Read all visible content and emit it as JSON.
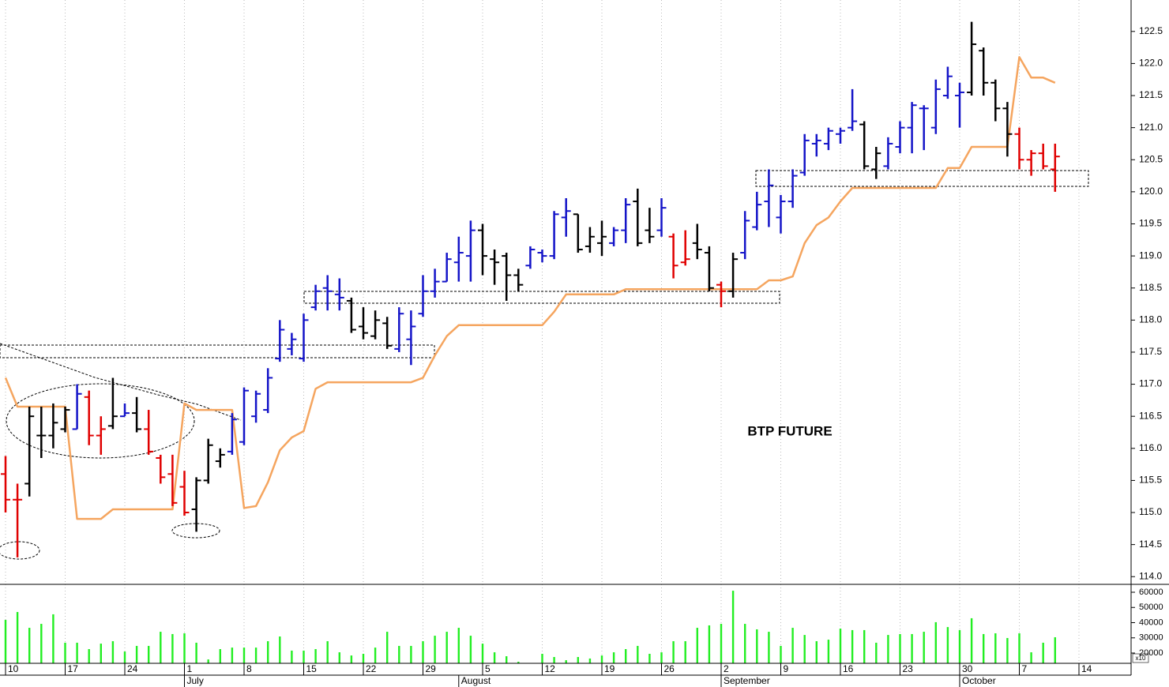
{
  "chart_data": {
    "type": "ohlc",
    "title": "BTP FUTURE",
    "categories": [
      "10",
      null,
      null,
      null,
      null,
      "17",
      null,
      null,
      null,
      null,
      "24",
      null,
      null,
      null,
      null,
      "1",
      null,
      null,
      null,
      null,
      "8",
      null,
      null,
      null,
      null,
      "15",
      null,
      null,
      null,
      null,
      "22",
      null,
      null,
      null,
      null,
      "29",
      null,
      null,
      null,
      null,
      "5",
      null,
      null,
      null,
      null,
      "12",
      null,
      null,
      null,
      null,
      "19",
      null,
      null,
      null,
      null,
      "26",
      null,
      null,
      null,
      null,
      "2",
      null,
      null,
      null,
      null,
      "9",
      null,
      null,
      null,
      null,
      "16",
      null,
      null,
      null,
      null,
      "23",
      null,
      null,
      null,
      null,
      "30",
      null,
      null,
      null,
      null,
      "7",
      null,
      null,
      null,
      null,
      "14"
    ],
    "months": [
      {
        "label": "July",
        "category": 15
      },
      {
        "label": "August",
        "category": 38
      },
      {
        "label": "September",
        "category": 60
      },
      {
        "label": "October",
        "category": 80
      }
    ],
    "open": [
      115.6,
      115.2,
      115.45,
      116.2,
      116.2,
      116.3,
      116.3,
      116.8,
      116.2,
      116.35,
      116.5,
      116.55,
      116.3,
      115.85,
      115.6,
      115.4,
      115.05,
      115.5,
      115.8,
      115.95,
      116.1,
      116.5,
      116.6,
      117.4,
      117.55,
      117.4,
      118.2,
      118.5,
      118.4,
      118.3,
      117.9,
      117.75,
      117.95,
      117.55,
      117.7,
      118.1,
      118.45,
      118.6,
      118.9,
      119.0,
      119.4,
      118.95,
      119.0,
      118.7,
      118.85,
      119.05,
      119.0,
      119.6,
      119.65,
      119.15,
      119.2,
      119.2,
      119.4,
      119.85,
      119.4,
      119.4,
      119.3,
      118.9,
      119.2,
      119.05,
      118.55,
      118.45,
      119.05,
      119.45,
      119.85,
      119.6,
      119.85,
      120.3,
      120.75,
      120.75,
      120.9,
      121.0,
      121.05,
      120.35,
      120.4,
      120.7,
      121.0,
      121.3,
      121.0,
      121.5,
      121.5,
      121.55,
      122.2,
      121.7,
      121.3,
      120.9,
      120.5,
      120.6,
      120.35,
      null,
      null
    ],
    "high": [
      115.88,
      115.45,
      116.65,
      116.65,
      116.7,
      116.65,
      117.0,
      116.9,
      116.5,
      117.1,
      116.7,
      116.8,
      116.6,
      115.9,
      115.9,
      115.65,
      115.55,
      116.15,
      116.0,
      116.55,
      116.95,
      116.9,
      117.25,
      118.0,
      117.8,
      118.1,
      118.55,
      118.7,
      118.65,
      118.35,
      118.2,
      118.15,
      118.05,
      118.2,
      118.15,
      118.7,
      118.8,
      119.05,
      119.3,
      119.55,
      119.5,
      119.1,
      119.05,
      118.8,
      119.15,
      119.1,
      119.7,
      119.9,
      119.65,
      119.45,
      119.55,
      119.45,
      119.9,
      120.05,
      119.75,
      119.9,
      119.35,
      119.4,
      119.5,
      119.15,
      118.6,
      119.05,
      119.7,
      120.0,
      120.35,
      119.95,
      120.35,
      120.9,
      120.9,
      121.0,
      121.0,
      121.6,
      121.1,
      120.7,
      120.85,
      121.1,
      121.4,
      121.35,
      121.75,
      121.95,
      121.7,
      122.65,
      122.25,
      121.75,
      121.4,
      121.0,
      120.65,
      120.75,
      120.75,
      null,
      null
    ],
    "low": [
      115.0,
      114.3,
      115.25,
      115.85,
      116.0,
      116.25,
      116.3,
      116.05,
      115.9,
      116.3,
      116.5,
      116.25,
      115.9,
      115.45,
      115.1,
      114.95,
      114.7,
      115.45,
      115.7,
      115.9,
      116.05,
      116.4,
      116.55,
      117.35,
      117.45,
      117.35,
      118.15,
      118.15,
      118.15,
      117.8,
      117.7,
      117.7,
      117.55,
      117.5,
      117.3,
      118.05,
      118.35,
      118.6,
      118.6,
      118.6,
      118.7,
      118.55,
      118.3,
      118.45,
      118.8,
      118.9,
      118.95,
      119.3,
      119.05,
      119.05,
      119.0,
      119.15,
      119.2,
      119.15,
      119.2,
      119.3,
      118.65,
      118.85,
      118.95,
      118.45,
      118.2,
      118.35,
      118.95,
      119.4,
      119.45,
      119.35,
      119.75,
      120.25,
      120.55,
      120.65,
      120.75,
      120.95,
      120.35,
      120.2,
      120.35,
      120.6,
      120.6,
      120.65,
      120.9,
      121.45,
      121.0,
      121.5,
      121.5,
      121.1,
      120.55,
      120.35,
      120.25,
      120.35,
      120.0,
      null,
      null
    ],
    "close": [
      115.2,
      115.2,
      116.5,
      116.2,
      116.4,
      116.6,
      116.85,
      116.2,
      116.3,
      116.5,
      116.55,
      116.3,
      115.95,
      115.55,
      115.15,
      115.0,
      115.5,
      116.05,
      115.9,
      116.45,
      116.9,
      116.85,
      117.1,
      117.85,
      117.7,
      118.0,
      118.45,
      118.45,
      118.35,
      117.85,
      117.8,
      118.0,
      117.6,
      118.1,
      117.9,
      118.45,
      118.6,
      118.95,
      119.05,
      119.4,
      119.0,
      118.9,
      118.7,
      118.55,
      119.1,
      119.0,
      119.65,
      119.7,
      119.1,
      119.3,
      119.3,
      119.4,
      119.8,
      119.2,
      119.3,
      119.75,
      118.85,
      118.95,
      119.1,
      118.5,
      118.45,
      118.95,
      119.55,
      119.8,
      120.1,
      119.85,
      120.25,
      120.8,
      120.8,
      120.95,
      120.95,
      121.1,
      120.4,
      120.6,
      120.75,
      121.0,
      121.35,
      121.3,
      121.6,
      121.8,
      121.55,
      122.3,
      121.7,
      121.3,
      120.9,
      120.5,
      120.6,
      120.4,
      120.55,
      null,
      null
    ],
    "bar_colors": [
      "#e00000",
      "#e00000",
      "#000000",
      "#000000",
      "#000000",
      "#000000",
      "#1414c8",
      "#e00000",
      "#e00000",
      "#000000",
      "#1414c8",
      "#000000",
      "#e00000",
      "#e00000",
      "#e00000",
      "#e00000",
      "#000000",
      "#000000",
      "#000000",
      "#1414c8",
      "#1414c8",
      "#1414c8",
      "#1414c8",
      "#1414c8",
      "#1414c8",
      "#1414c8",
      "#1414c8",
      "#1414c8",
      "#1414c8",
      "#000000",
      "#000000",
      "#000000",
      "#000000",
      "#1414c8",
      "#1414c8",
      "#1414c8",
      "#1414c8",
      "#1414c8",
      "#1414c8",
      "#1414c8",
      "#000000",
      "#000000",
      "#000000",
      "#000000",
      "#1414c8",
      "#1414c8",
      "#1414c8",
      "#1414c8",
      "#000000",
      "#000000",
      "#000000",
      "#1414c8",
      "#1414c8",
      "#000000",
      "#000000",
      "#1414c8",
      "#e00000",
      "#e00000",
      "#000000",
      "#000000",
      "#e00000",
      "#000000",
      "#1414c8",
      "#1414c8",
      "#1414c8",
      "#1414c8",
      "#1414c8",
      "#1414c8",
      "#1414c8",
      "#1414c8",
      "#1414c8",
      "#1414c8",
      "#000000",
      "#000000",
      "#1414c8",
      "#1414c8",
      "#1414c8",
      "#1414c8",
      "#1414c8",
      "#1414c8",
      "#1414c8",
      "#000000",
      "#000000",
      "#000000",
      "#000000",
      "#e00000",
      "#e00000",
      "#e00000",
      "#e00000",
      null,
      null
    ],
    "stop_line": {
      "color": "#f5a55f",
      "values": [
        117.1,
        116.65,
        116.65,
        116.65,
        116.65,
        116.65,
        114.9,
        114.9,
        114.9,
        115.05,
        115.05,
        115.05,
        115.05,
        115.05,
        115.05,
        116.7,
        116.6,
        116.6,
        116.6,
        116.6,
        115.07,
        115.1,
        115.47,
        115.97,
        116.17,
        116.27,
        116.93,
        117.03,
        117.03,
        117.03,
        117.03,
        117.03,
        117.03,
        117.03,
        117.03,
        117.1,
        117.45,
        117.75,
        117.92,
        117.92,
        117.92,
        117.92,
        117.92,
        117.92,
        117.92,
        117.92,
        118.13,
        118.4,
        118.4,
        118.4,
        118.4,
        118.4,
        118.48,
        118.48,
        118.48,
        118.48,
        118.48,
        118.48,
        118.48,
        118.48,
        118.48,
        118.48,
        118.48,
        118.48,
        118.62,
        118.62,
        118.68,
        119.2,
        119.48,
        119.6,
        119.85,
        120.06,
        120.06,
        120.06,
        120.06,
        120.06,
        120.06,
        120.06,
        120.06,
        120.37,
        120.37,
        120.7,
        120.7,
        120.7,
        120.7,
        122.1,
        121.78,
        121.78,
        121.7,
        null,
        null
      ]
    },
    "ylim": [
      113.88,
      122.99
    ],
    "yticks": [
      {
        "value": 114,
        "label": "114.0"
      },
      114.5,
      {
        "value": 115,
        "label": "115.0"
      },
      115.5,
      {
        "value": 116,
        "label": "116.0"
      },
      116.5,
      {
        "value": 117,
        "label": "117.0"
      },
      117.5,
      {
        "value": 118,
        "label": "118.0"
      },
      118.5,
      {
        "value": 119,
        "label": "119.0"
      },
      119.5,
      {
        "value": 120,
        "label": "120.0"
      },
      120.5,
      {
        "value": 121,
        "label": "121.0"
      },
      121.5,
      {
        "value": 122,
        "label": "122.0"
      },
      122.5
    ],
    "grid": "x",
    "volume": {
      "color": "#22ee22",
      "scale_label": "x10",
      "values": [
        41800,
        47000,
        36600,
        39200,
        45500,
        26800,
        26800,
        22600,
        26200,
        27800,
        21000,
        24700,
        24700,
        34000,
        32500,
        33000,
        26800,
        15800,
        22600,
        23600,
        23600,
        23600,
        27800,
        30900,
        21600,
        21600,
        22600,
        27800,
        20500,
        18400,
        19500,
        23600,
        34000,
        24700,
        24700,
        27800,
        31400,
        34000,
        36600,
        31400,
        26200,
        20500,
        17900,
        14300,
        13500,
        19500,
        17400,
        15300,
        17400,
        16400,
        18400,
        20500,
        22600,
        24700,
        19500,
        20500,
        27800,
        27800,
        36600,
        38200,
        39200,
        61000,
        39200,
        35600,
        34000,
        24700,
        36600,
        31900,
        27800,
        28800,
        36100,
        35100,
        35100,
        26800,
        31900,
        32500,
        32500,
        34000,
        40300,
        37100,
        35100,
        42900,
        32500,
        33000,
        29900,
        33000,
        20500,
        26800,
        30400,
        null,
        null
      ],
      "ylim": [
        13250,
        65200
      ],
      "yticks": [
        20000,
        30000,
        40000,
        50000,
        60000
      ]
    }
  }
}
